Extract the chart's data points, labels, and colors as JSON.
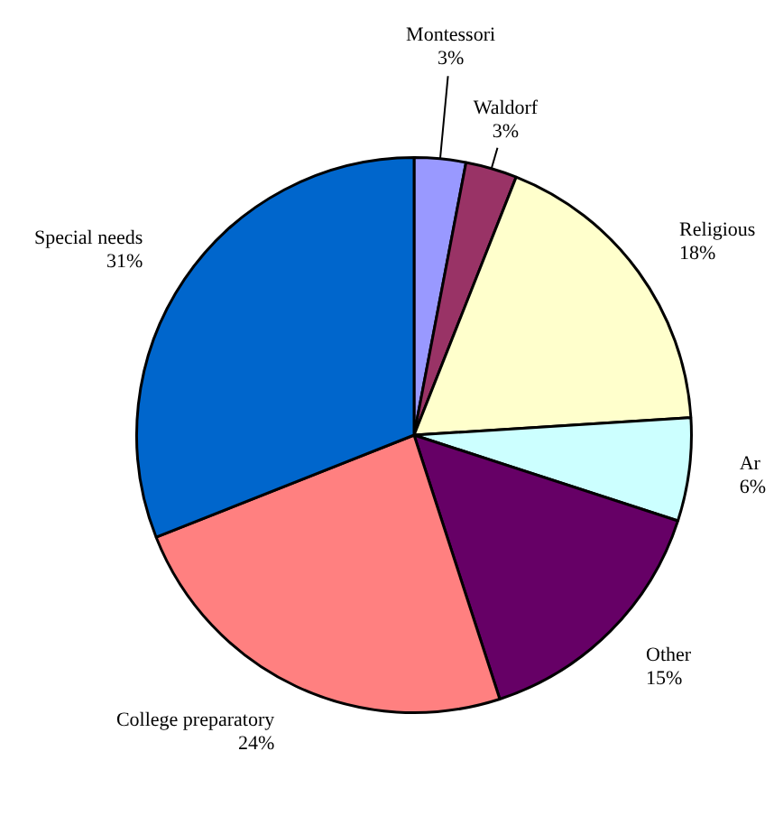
{
  "chart_data": {
    "type": "pie",
    "categories": [
      "Montessori",
      "Waldorf",
      "Religious",
      "Ar",
      "Other",
      "College preparatory",
      "Special needs"
    ],
    "values": [
      3,
      3,
      18,
      6,
      15,
      24,
      31
    ],
    "colors": [
      "#9999ff",
      "#993366",
      "#ffffcc",
      "#ccffff",
      "#660066",
      "#ff8080",
      "#0066cc"
    ],
    "value_labels": [
      "3%",
      "3%",
      "18%",
      "6%",
      "15%",
      "24%",
      "31%"
    ],
    "legend": false
  }
}
